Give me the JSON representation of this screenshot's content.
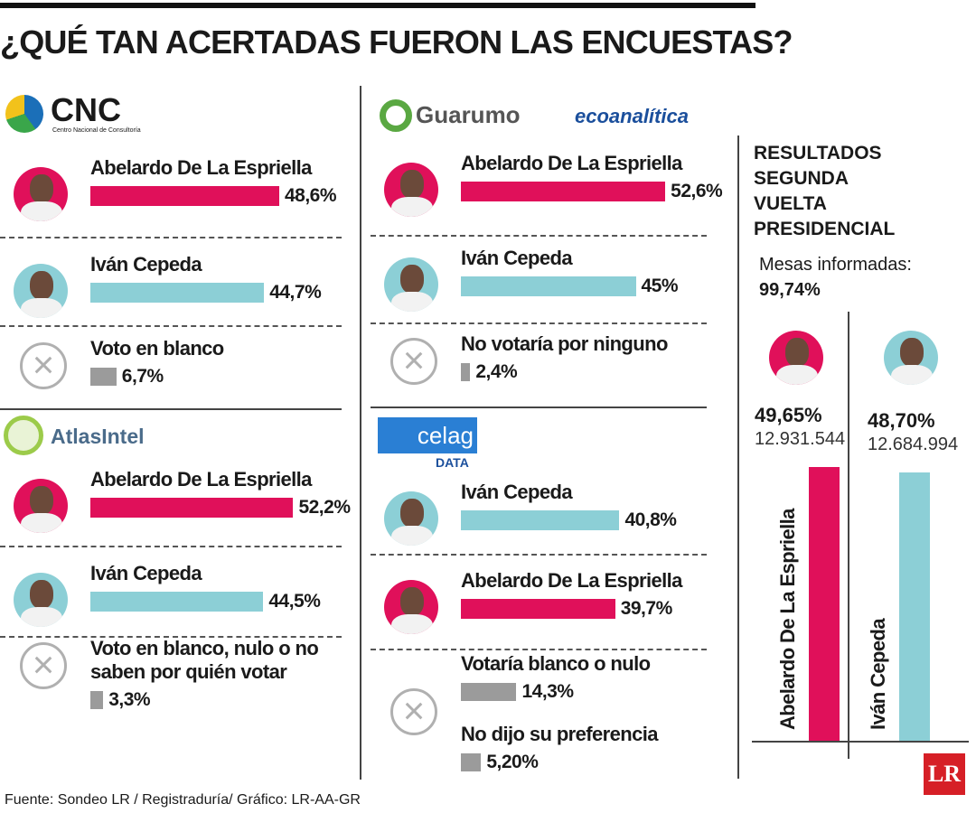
{
  "title": "¿QUÉ TAN ACERTADAS FUERON LAS ENCUESTAS?",
  "source": "Fuente: Sondeo LR / Registraduría/ Gráfico: LR-AA-GR",
  "brand": "LR",
  "chart_data": [
    {
      "type": "bar",
      "pollster": "CNC",
      "pollster_subtitle": "Centro Nacional de Consultoría",
      "categories": [
        "Abelardo De La Espriella",
        "Iván Cepeda",
        "Voto en blanco"
      ],
      "values": [
        48.6,
        44.7,
        6.7
      ],
      "value_labels": [
        "48,6%",
        "44,7%",
        "6,7%"
      ],
      "colors": [
        "#e0105a",
        "#8ccfd6",
        "#9b9b9b"
      ]
    },
    {
      "type": "bar",
      "pollster": "AtlasIntel",
      "categories": [
        "Abelardo De La Espriella",
        "Iván Cepeda",
        "Voto en blanco, nulo o no saben por quién votar"
      ],
      "values": [
        52.2,
        44.5,
        3.3
      ],
      "value_labels": [
        "52,2%",
        "44,5%",
        "3,3%"
      ],
      "colors": [
        "#e0105a",
        "#8ccfd6",
        "#9b9b9b"
      ]
    },
    {
      "type": "bar",
      "pollster": "Guarumo",
      "pollster2": "ecoanalítica",
      "categories": [
        "Abelardo De La Espriella",
        "Iván Cepeda",
        "No votaría por ninguno"
      ],
      "values": [
        52.6,
        45,
        2.4
      ],
      "value_labels": [
        "52,6%",
        "45%",
        "2,4%"
      ],
      "colors": [
        "#e0105a",
        "#8ccfd6",
        "#9b9b9b"
      ]
    },
    {
      "type": "bar",
      "pollster": "celag",
      "pollster_subtitle": "DATA",
      "categories": [
        "Iván Cepeda",
        "Abelardo De La Espriella",
        "Votaría blanco o nulo",
        "No dijo su preferencia"
      ],
      "values": [
        40.8,
        39.7,
        14.3,
        5.2
      ],
      "value_labels": [
        "40,8%",
        "39,7%",
        "14,3%",
        "5,20%"
      ],
      "colors": [
        "#8ccfd6",
        "#e0105a",
        "#9b9b9b",
        "#9b9b9b"
      ]
    },
    {
      "type": "column",
      "title": "RESULTADOS SEGUNDA VUELTA PRESIDENCIAL",
      "reported": "Mesas informadas:",
      "reported_value": 99.74,
      "reported_label": "99,74%",
      "categories": [
        "Abelardo De La Espriella",
        "Iván Cepeda"
      ],
      "values": [
        49.65,
        48.7
      ],
      "value_labels": [
        "49,65%",
        "48,70%"
      ],
      "votes": [
        12931544,
        12684994
      ],
      "votes_labels": [
        "12.931.544",
        "12.684.994"
      ],
      "colors": [
        "#e0105a",
        "#8ccfd6"
      ]
    }
  ]
}
